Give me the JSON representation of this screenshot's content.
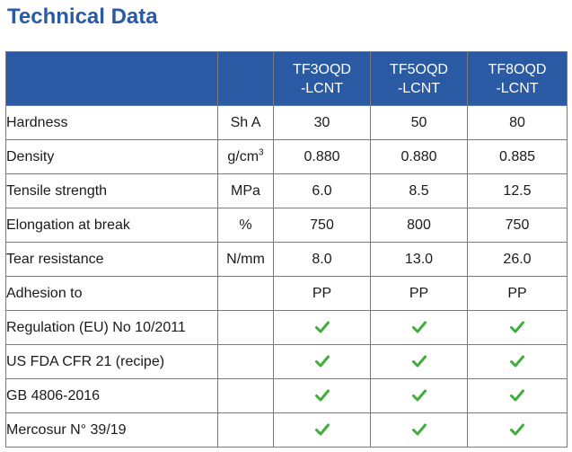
{
  "page": {
    "title": "Technical Data"
  },
  "colors": {
    "header_bg": "#2a5aa4",
    "title": "#2a5aa4",
    "check": "#3fae3a"
  },
  "table": {
    "products": [
      {
        "line1": "TF3OQD",
        "line2": "-LCNT"
      },
      {
        "line1": "TF5OQD",
        "line2": "-LCNT"
      },
      {
        "line1": "TF8OQD",
        "line2": "-LCNT"
      }
    ],
    "rows": [
      {
        "property": "Hardness",
        "unit": "Sh A",
        "unit_sup": "",
        "values": [
          "30",
          "50",
          "80"
        ]
      },
      {
        "property": "Density",
        "unit": "g/cm",
        "unit_sup": "3",
        "values": [
          "0.880",
          "0.880",
          "0.885"
        ]
      },
      {
        "property": "Tensile strength",
        "unit": "MPa",
        "unit_sup": "",
        "values": [
          "6.0",
          "8.5",
          "12.5"
        ]
      },
      {
        "property": "Elongation at break",
        "unit": "%",
        "unit_sup": "",
        "values": [
          "750",
          "800",
          "750"
        ]
      },
      {
        "property": "Tear resistance",
        "unit": "N/mm",
        "unit_sup": "",
        "values": [
          "8.0",
          "13.0",
          "26.0"
        ]
      },
      {
        "property": "Adhesion to",
        "unit": "",
        "unit_sup": "",
        "values": [
          "PP",
          "PP",
          "PP"
        ]
      },
      {
        "property": "Regulation (EU) No 10/2011",
        "unit": "",
        "unit_sup": "",
        "values": [
          "check-icon",
          "check-icon",
          "check-icon"
        ]
      },
      {
        "property": "US FDA CFR 21 (recipe)",
        "unit": "",
        "unit_sup": "",
        "values": [
          "check-icon",
          "check-icon",
          "check-icon"
        ]
      },
      {
        "property": "GB 4806-2016",
        "unit": "",
        "unit_sup": "",
        "values": [
          "check-icon",
          "check-icon",
          "check-icon"
        ]
      },
      {
        "property": "Mercosur N° 39/19",
        "unit": "",
        "unit_sup": "",
        "values": [
          "check-icon",
          "check-icon",
          "check-icon"
        ]
      }
    ]
  }
}
